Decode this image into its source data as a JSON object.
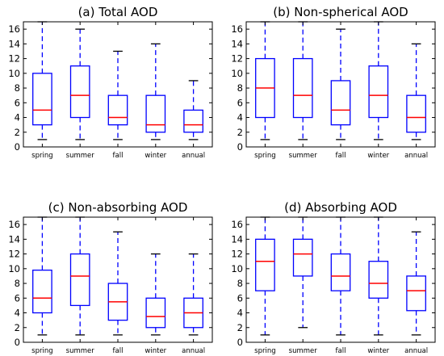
{
  "chart_data": [
    {
      "type": "box",
      "title": "(a) Total AOD",
      "categories": [
        "spring",
        "summer",
        "fall",
        "winter",
        "annual"
      ],
      "ylim": [
        0,
        17
      ],
      "yticks": [
        0,
        2,
        4,
        6,
        8,
        10,
        12,
        14,
        16
      ],
      "boxes": [
        {
          "min": 1,
          "q1": 3,
          "median": 5,
          "q3": 10,
          "max": 17
        },
        {
          "min": 1,
          "q1": 4,
          "median": 7,
          "q3": 11,
          "max": 16
        },
        {
          "min": 1,
          "q1": 3,
          "median": 4,
          "q3": 7,
          "max": 13
        },
        {
          "min": 1,
          "q1": 2,
          "median": 3,
          "q3": 7,
          "max": 14
        },
        {
          "min": 1,
          "q1": 2,
          "median": 3,
          "q3": 5,
          "max": 9
        }
      ]
    },
    {
      "type": "box",
      "title": "(b) Non-spherical AOD",
      "categories": [
        "spring",
        "summer",
        "fall",
        "winter",
        "annual"
      ],
      "ylim": [
        0,
        17
      ],
      "yticks": [
        0,
        2,
        4,
        6,
        8,
        10,
        12,
        14,
        16
      ],
      "boxes": [
        {
          "min": 1,
          "q1": 4,
          "median": 8,
          "q3": 12,
          "max": 17
        },
        {
          "min": 1,
          "q1": 4,
          "median": 7,
          "q3": 12,
          "max": 17
        },
        {
          "min": 1,
          "q1": 3,
          "median": 5,
          "q3": 9,
          "max": 16
        },
        {
          "min": 1,
          "q1": 4,
          "median": 7,
          "q3": 11,
          "max": 17
        },
        {
          "min": 1,
          "q1": 2,
          "median": 4,
          "q3": 7,
          "max": 14
        }
      ]
    },
    {
      "type": "box",
      "title": "(c) Non-absorbing AOD",
      "categories": [
        "spring",
        "summer",
        "fall",
        "winter",
        "annual"
      ],
      "ylim": [
        0,
        17
      ],
      "yticks": [
        0,
        2,
        4,
        6,
        8,
        10,
        12,
        14,
        16
      ],
      "boxes": [
        {
          "min": 1,
          "q1": 4,
          "median": 6,
          "q3": 9.8,
          "max": 17
        },
        {
          "min": 1,
          "q1": 5,
          "median": 9,
          "q3": 12,
          "max": 17
        },
        {
          "min": 1,
          "q1": 3,
          "median": 5.5,
          "q3": 8,
          "max": 15
        },
        {
          "min": 1,
          "q1": 2,
          "median": 3.5,
          "q3": 6,
          "max": 12
        },
        {
          "min": 1,
          "q1": 2,
          "median": 4,
          "q3": 6,
          "max": 12
        }
      ]
    },
    {
      "type": "box",
      "title": "(d) Absorbing AOD",
      "categories": [
        "spring",
        "summer",
        "fall",
        "winter",
        "annual"
      ],
      "ylim": [
        0,
        17
      ],
      "yticks": [
        0,
        2,
        4,
        6,
        8,
        10,
        12,
        14,
        16
      ],
      "boxes": [
        {
          "min": 1,
          "q1": 7,
          "median": 11,
          "q3": 14,
          "max": 17
        },
        {
          "min": 2,
          "q1": 9,
          "median": 12,
          "q3": 14,
          "max": 17
        },
        {
          "min": 1,
          "q1": 7,
          "median": 9,
          "q3": 12,
          "max": 17
        },
        {
          "min": 1,
          "q1": 6,
          "median": 8,
          "q3": 11,
          "max": 17
        },
        {
          "min": 1,
          "q1": 4.3,
          "median": 7,
          "q3": 9,
          "max": 15
        }
      ]
    }
  ],
  "colors": {
    "box": "#0000ff",
    "median": "#ff0000",
    "whisker": "#0000ff",
    "cap": "#000000",
    "axis": "#000000"
  }
}
